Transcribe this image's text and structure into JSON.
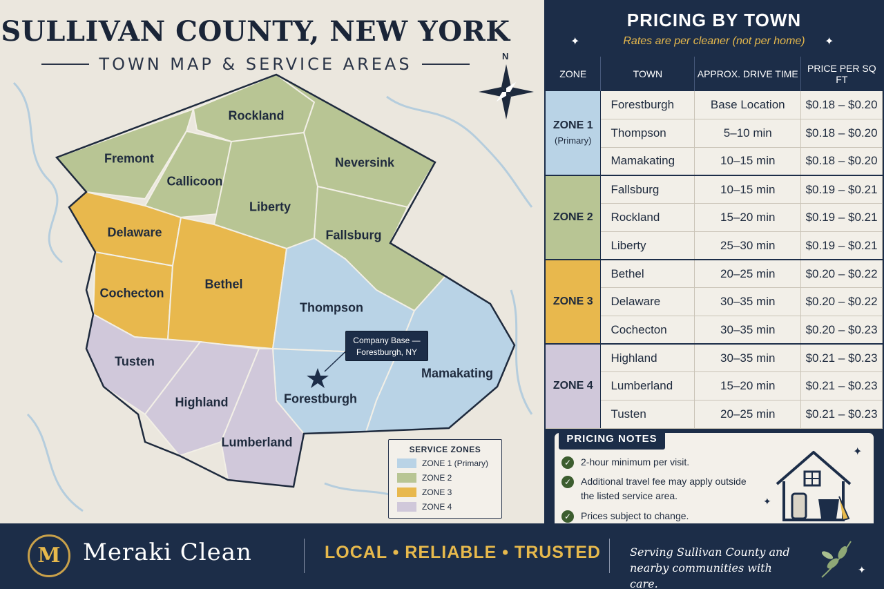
{
  "header": {
    "title": "SULLIVAN COUNTY, NEW YORK",
    "subtitle": "TOWN MAP & SERVICE AREAS"
  },
  "colors": {
    "zone1": "#b9d3e6",
    "zone2": "#b8c594",
    "zone3": "#e8b84d",
    "zone4": "#d0c8da",
    "navy": "#1c2d48",
    "gold": "#e7b94c"
  },
  "map": {
    "compass_label": "N",
    "towns": [
      {
        "name": "Rockland",
        "zone": 2
      },
      {
        "name": "Fremont",
        "zone": 2
      },
      {
        "name": "Callicoon",
        "zone": 2
      },
      {
        "name": "Neversink",
        "zone": 2
      },
      {
        "name": "Liberty",
        "zone": 2
      },
      {
        "name": "Fallsburg",
        "zone": 2
      },
      {
        "name": "Delaware",
        "zone": 3
      },
      {
        "name": "Cochecton",
        "zone": 3
      },
      {
        "name": "Bethel",
        "zone": 3
      },
      {
        "name": "Thompson",
        "zone": 1
      },
      {
        "name": "Mamakating",
        "zone": 1
      },
      {
        "name": "Forestburgh",
        "zone": 1
      },
      {
        "name": "Tusten",
        "zone": 4
      },
      {
        "name": "Highland",
        "zone": 4
      },
      {
        "name": "Lumberland",
        "zone": 4
      }
    ],
    "callout_line1": "Company Base —",
    "callout_line2": "Forestburgh, NY",
    "legend": {
      "title": "SERVICE ZONES",
      "items": [
        "ZONE 1 (Primary)",
        "ZONE 2",
        "ZONE 3",
        "ZONE 4"
      ]
    }
  },
  "pricing": {
    "title": "PRICING BY TOWN",
    "subtitle": "Rates are per cleaner (not per home)",
    "columns": [
      "ZONE",
      "TOWN",
      "APPROX. DRIVE TIME",
      "PRICE PER SQ FT"
    ],
    "zones": [
      {
        "label": "ZONE 1",
        "sub": "(Primary)",
        "rows": [
          {
            "town": "Forestburgh",
            "drive": "Base Location",
            "price": "$0.18 – $0.20"
          },
          {
            "town": "Thompson",
            "drive": "5–10 min",
            "price": "$0.18 – $0.20"
          },
          {
            "town": "Mamakating",
            "drive": "10–15 min",
            "price": "$0.18 – $0.20"
          }
        ]
      },
      {
        "label": "ZONE 2",
        "sub": "",
        "rows": [
          {
            "town": "Fallsburg",
            "drive": "10–15 min",
            "price": "$0.19 – $0.21"
          },
          {
            "town": "Rockland",
            "drive": "15–20 min",
            "price": "$0.19 – $0.21"
          },
          {
            "town": "Liberty",
            "drive": "25–30 min",
            "price": "$0.19 – $0.21"
          }
        ]
      },
      {
        "label": "ZONE 3",
        "sub": "",
        "rows": [
          {
            "town": "Bethel",
            "drive": "20–25 min",
            "price": "$0.20 – $0.22"
          },
          {
            "town": "Delaware",
            "drive": "30–35 min",
            "price": "$0.20 – $0.22"
          },
          {
            "town": "Cochecton",
            "drive": "30–35 min",
            "price": "$0.20 – $0.23"
          }
        ]
      },
      {
        "label": "ZONE 4",
        "sub": "",
        "rows": [
          {
            "town": "Highland",
            "drive": "30–35 min",
            "price": "$0.21 – $0.23"
          },
          {
            "town": "Lumberland",
            "drive": "15–20 min",
            "price": "$0.21 – $0.23"
          },
          {
            "town": "Tusten",
            "drive": "20–25 min",
            "price": "$0.21 – $0.23"
          }
        ]
      }
    ]
  },
  "notes": {
    "title": "PRICING NOTES",
    "items": [
      "2-hour minimum per visit.",
      "Additional travel fee may apply outside the listed service area.",
      "Prices subject to change."
    ]
  },
  "footer": {
    "logo_letter": "M",
    "brand": "Meraki Clean",
    "tagline": "LOCAL • RELIABLE • TRUSTED",
    "serving": "Serving Sullivan County and nearby communities with care."
  }
}
